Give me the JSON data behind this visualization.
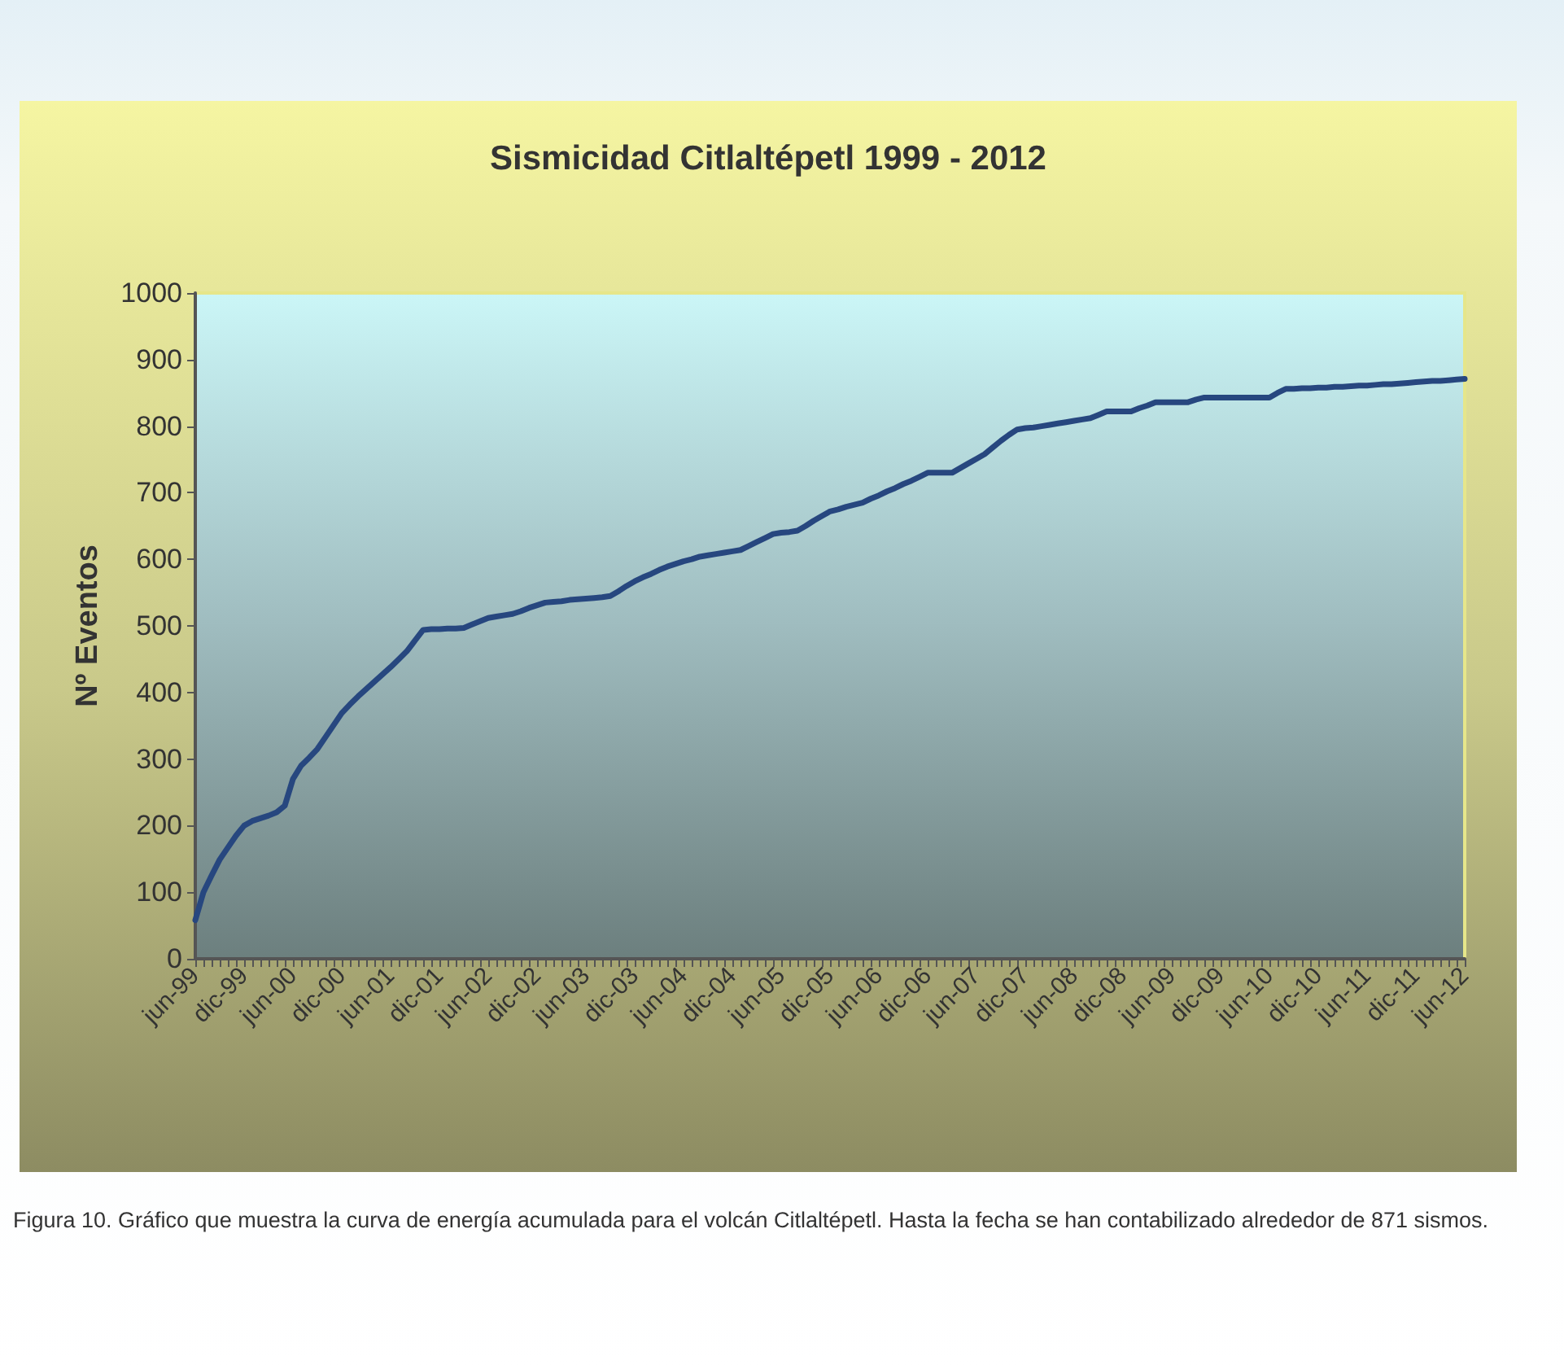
{
  "chart_data": {
    "type": "line",
    "title": "Sismicidad Citlaltépetl 1999 - 2012",
    "ylabel": "Nº Eventos",
    "annotations": [
      "Figura 10. Gráfico que muestra la curva de energía acumulada para el volcán Citlaltépetl. Hasta la fecha se han contabilizado alrededor de 871 sismos."
    ],
    "categories": [
      "jun-99",
      null,
      null,
      null,
      null,
      null,
      "dic-99",
      null,
      null,
      null,
      null,
      null,
      "jun-00",
      null,
      null,
      null,
      null,
      null,
      "dic-00",
      null,
      null,
      null,
      null,
      null,
      "jun-01",
      null,
      null,
      null,
      null,
      null,
      "dic-01",
      null,
      null,
      null,
      null,
      null,
      "jun-02",
      null,
      null,
      null,
      null,
      null,
      "dic-02",
      null,
      null,
      null,
      null,
      null,
      "jun-03",
      null,
      null,
      null,
      null,
      null,
      "dic-03",
      null,
      null,
      null,
      null,
      null,
      "jun-04",
      null,
      null,
      null,
      null,
      null,
      "dic-04",
      null,
      null,
      null,
      null,
      null,
      "jun-05",
      null,
      null,
      null,
      null,
      null,
      "dic-05",
      null,
      null,
      null,
      null,
      null,
      "jun-06",
      null,
      null,
      null,
      null,
      null,
      "dic-06",
      null,
      null,
      null,
      null,
      null,
      "jun-07",
      null,
      null,
      null,
      null,
      null,
      "dic-07",
      null,
      null,
      null,
      null,
      null,
      "jun-08",
      null,
      null,
      null,
      null,
      null,
      "dic-08",
      null,
      null,
      null,
      null,
      null,
      "jun-09",
      null,
      null,
      null,
      null,
      null,
      "dic-09",
      null,
      null,
      null,
      null,
      null,
      "jun-10",
      null,
      null,
      null,
      null,
      null,
      "dic-10",
      null,
      null,
      null,
      null,
      null,
      "jun-11",
      null,
      null,
      null,
      null,
      null,
      "dic-11",
      null,
      null,
      null,
      null,
      null,
      "jun-12"
    ],
    "series": [
      {
        "color": "#27477f",
        "values": [
          58,
          100,
          125,
          149,
          167,
          185,
          200,
          207,
          211,
          215,
          220,
          230,
          270,
          290,
          302,
          315,
          333,
          351,
          369,
          382,
          394,
          405,
          416,
          427,
          438,
          450,
          462,
          478,
          494,
          495,
          495,
          496,
          496,
          497,
          502,
          507,
          512,
          514,
          516,
          518,
          522,
          527,
          531,
          535,
          536,
          537,
          539,
          540,
          541,
          542,
          543,
          545,
          552,
          560,
          567,
          573,
          578,
          584,
          589,
          593,
          597,
          600,
          604,
          606,
          608,
          610,
          612,
          614,
          620,
          626,
          632,
          638,
          640,
          641,
          643,
          650,
          658,
          665,
          672,
          675,
          679,
          682,
          685,
          691,
          696,
          702,
          707,
          713,
          718,
          724,
          730,
          730,
          730,
          730,
          737,
          744,
          751,
          758,
          768,
          778,
          787,
          795,
          797,
          798,
          800,
          802,
          804,
          806,
          808,
          810,
          812,
          817,
          822,
          822,
          822,
          822,
          827,
          831,
          836,
          836,
          836,
          836,
          836,
          840,
          843,
          843,
          843,
          843,
          843,
          843,
          843,
          843,
          843,
          850,
          856,
          856,
          857,
          857,
          858,
          858,
          859,
          859,
          860,
          861,
          861,
          862,
          863,
          863,
          864,
          865,
          866,
          867,
          868,
          868,
          869,
          870,
          871
        ]
      }
    ],
    "ylim": [
      0,
      1000
    ],
    "yticks": [
      0,
      100,
      200,
      300,
      400,
      500,
      600,
      700,
      800,
      900,
      1000
    ],
    "grid": false,
    "marker": "none",
    "line_style": "solid"
  }
}
